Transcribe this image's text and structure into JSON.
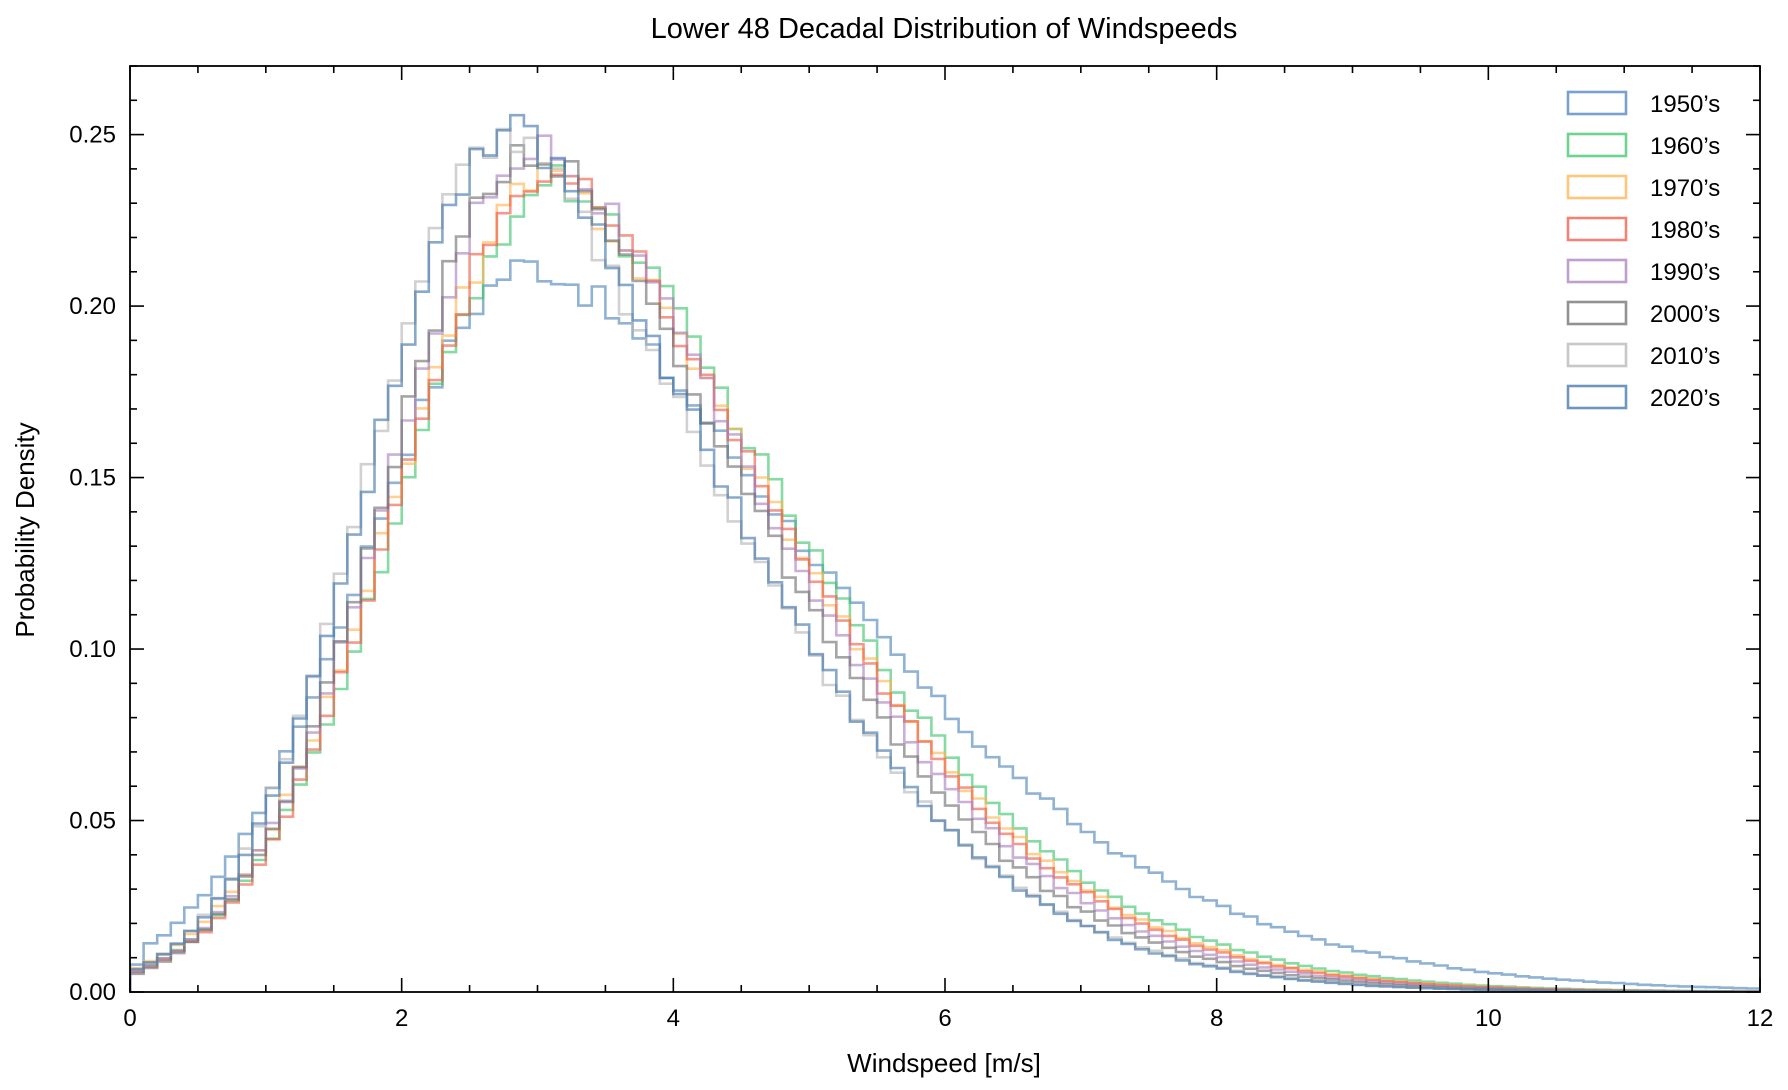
{
  "chart_data": {
    "type": "histogram-step",
    "title": "Lower 48 Decadal Distribution of Windspeeds",
    "xlabel": "Windspeed [m/s]",
    "ylabel": "Probability Density",
    "xlim": [
      0,
      12
    ],
    "ylim": [
      0,
      0.27
    ],
    "xticks": [
      0,
      2,
      4,
      6,
      8,
      10,
      12
    ],
    "xtick_labels": [
      "0",
      "2",
      "4",
      "6",
      "8",
      "10",
      "12"
    ],
    "yticks": [
      0.0,
      0.05,
      0.1,
      0.15,
      0.2,
      0.25
    ],
    "ytick_labels": [
      "0.00",
      "0.05",
      "0.10",
      "0.15",
      "0.20",
      "0.25"
    ],
    "grid": false,
    "legend_position": "top-right",
    "bin_width": 0.1,
    "series": [
      {
        "name": "1950’s",
        "color": "#4c82b8",
        "mode": 2.95,
        "peak": 0.212,
        "sigma_left": 1.2,
        "sigma_right": 2.05
      },
      {
        "name": "1960’s",
        "color": "#3cc46a",
        "mode": 3.15,
        "peak": 0.236,
        "sigma_left": 1.15,
        "sigma_right": 1.65
      },
      {
        "name": "1970’s",
        "color": "#ffb34d",
        "mode": 3.1,
        "peak": 0.237,
        "sigma_left": 1.15,
        "sigma_right": 1.62
      },
      {
        "name": "1980’s",
        "color": "#ee5a45",
        "mode": 3.1,
        "peak": 0.238,
        "sigma_left": 1.12,
        "sigma_right": 1.6
      },
      {
        "name": "1990’s",
        "color": "#a97fbe",
        "mode": 3.0,
        "peak": 0.247,
        "sigma_left": 1.08,
        "sigma_right": 1.58
      },
      {
        "name": "2000’s",
        "color": "#6e6e6e",
        "mode": 2.95,
        "peak": 0.246,
        "sigma_left": 1.05,
        "sigma_right": 1.55
      },
      {
        "name": "2010’s",
        "color": "#b5b5b5",
        "mode": 2.75,
        "peak": 0.249,
        "sigma_left": 1.0,
        "sigma_right": 1.55
      },
      {
        "name": "2020’s",
        "color": "#3f74a8",
        "mode": 2.8,
        "peak": 0.252,
        "sigma_left": 1.02,
        "sigma_right": 1.52
      }
    ]
  }
}
